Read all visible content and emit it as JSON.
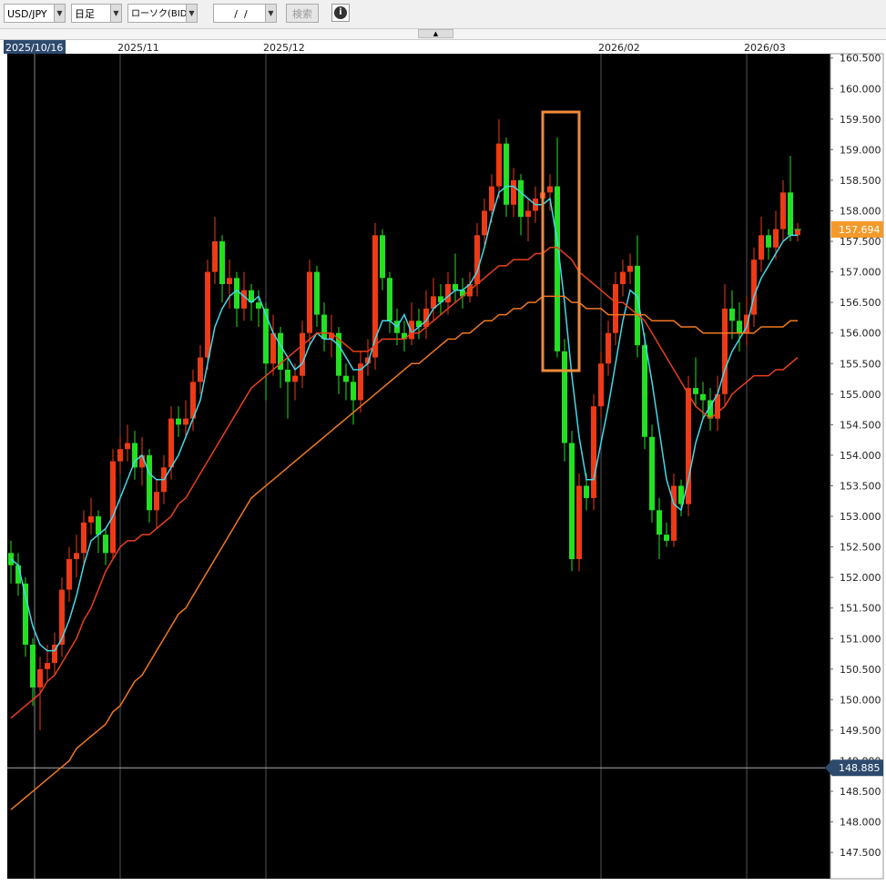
{
  "toolbar": {
    "symbol": "USD/JPY",
    "timeframe": "日足",
    "chart_type": "ローソク(BID)",
    "date": "/  /",
    "search": "検索"
  },
  "chart_data": {
    "type": "candlestick",
    "categories": [
      null,
      null,
      null,
      null,
      null,
      null,
      null,
      null,
      null,
      null,
      null,
      null,
      null,
      null,
      null,
      "2025/11",
      null,
      null,
      null,
      null,
      null,
      null,
      null,
      null,
      null,
      null,
      null,
      null,
      null,
      null,
      null,
      null,
      null,
      null,
      null,
      "2025/12",
      null,
      null,
      null,
      null,
      null,
      null,
      null,
      null,
      null,
      null,
      null,
      null,
      null,
      null,
      null,
      null,
      null,
      null,
      null,
      null,
      null,
      null,
      null,
      null,
      null,
      null,
      null,
      null,
      null,
      null,
      null,
      null,
      null,
      null,
      null,
      null,
      null,
      null,
      null,
      null,
      null,
      null,
      null,
      null,
      null,
      "2026/02",
      null,
      null,
      null,
      null,
      null,
      null,
      null,
      null,
      null,
      null,
      null,
      null,
      null,
      null,
      null,
      null,
      null,
      null,
      null,
      "2026/03",
      null,
      null,
      null,
      null,
      null,
      null,
      null
    ],
    "open": [
      152.4,
      152.2,
      151.9,
      150.9,
      150.2,
      150.5,
      150.6,
      150.9,
      151.8,
      152.3,
      152.4,
      152.9,
      153.0,
      152.7,
      152.4,
      153.9,
      154.1,
      154.2,
      153.8,
      154.0,
      153.1,
      153.4,
      153.8,
      154.6,
      154.5,
      154.6,
      155.2,
      155.6,
      157.0,
      157.5,
      156.8,
      156.9,
      156.4,
      156.7,
      156.5,
      156.4,
      155.5,
      156.0,
      155.4,
      155.2,
      155.3,
      156.0,
      157.0,
      156.3,
      155.9,
      156.0,
      155.3,
      155.2,
      154.9,
      155.5,
      155.6,
      157.6,
      156.9,
      156.2,
      156.0,
      155.9,
      156.2,
      156.1,
      156.4,
      156.6,
      156.5,
      156.8,
      156.7,
      156.6,
      156.8,
      157.6,
      158.0,
      158.4,
      159.1,
      158.1,
      158.5,
      157.9,
      158.0,
      158.2,
      158.3,
      158.4,
      155.7,
      154.2,
      152.3,
      153.5,
      153.3,
      154.8,
      155.5,
      156.0,
      156.8,
      157.0,
      157.1,
      155.8,
      154.3,
      153.1,
      152.7,
      152.6,
      153.5,
      153.2,
      155.1,
      155.0,
      154.9,
      154.6,
      155.0,
      156.4,
      156.2,
      156.0,
      156.3,
      157.2,
      157.6,
      157.4,
      157.7,
      158.3,
      157.6
    ],
    "high": [
      152.6,
      152.4,
      152.0,
      151.0,
      150.7,
      150.9,
      151.1,
      152.0,
      152.5,
      152.7,
      153.1,
      153.3,
      153.1,
      152.8,
      154.1,
      154.3,
      154.5,
      154.4,
      154.3,
      154.1,
      153.6,
      154.0,
      154.8,
      154.8,
      154.9,
      155.4,
      155.8,
      157.2,
      157.9,
      157.6,
      157.2,
      157.0,
      157.0,
      156.8,
      156.7,
      156.5,
      156.3,
      156.1,
      155.6,
      155.5,
      156.2,
      157.2,
      157.1,
      156.5,
      156.3,
      156.1,
      155.5,
      155.3,
      155.7,
      155.9,
      157.8,
      157.7,
      157.0,
      156.4,
      156.2,
      156.5,
      156.4,
      156.7,
      156.9,
      156.8,
      157.0,
      157.3,
      156.9,
      157.0,
      157.8,
      158.2,
      158.6,
      159.5,
      159.2,
      158.7,
      158.6,
      158.2,
      158.4,
      158.9,
      158.6,
      159.2,
      155.9,
      154.4,
      153.7,
      153.7,
      155.0,
      155.7,
      156.2,
      157.0,
      157.2,
      157.3,
      157.6,
      156.0,
      154.5,
      153.3,
      152.9,
      153.7,
      153.6,
      155.3,
      155.6,
      155.2,
      155.1,
      155.3,
      156.8,
      156.7,
      156.5,
      156.6,
      157.4,
      157.9,
      157.7,
      158.0,
      158.5,
      158.9,
      157.8
    ],
    "low": [
      151.9,
      151.7,
      150.7,
      149.9,
      149.5,
      150.3,
      150.4,
      150.7,
      151.6,
      152.0,
      152.2,
      152.7,
      152.4,
      152.2,
      152.3,
      153.7,
      153.9,
      153.6,
      153.5,
      152.9,
      152.8,
      153.2,
      153.6,
      154.3,
      154.3,
      154.4,
      155.0,
      155.4,
      156.8,
      156.5,
      156.4,
      156.1,
      156.2,
      156.2,
      156.1,
      154.9,
      155.3,
      155.1,
      154.6,
      154.9,
      155.1,
      155.8,
      156.1,
      155.7,
      155.6,
      155.0,
      154.9,
      154.5,
      154.7,
      155.3,
      155.4,
      156.7,
      156.0,
      155.8,
      155.7,
      155.8,
      155.9,
      155.9,
      156.2,
      156.3,
      156.3,
      156.5,
      156.4,
      156.5,
      156.6,
      157.4,
      157.8,
      158.2,
      157.9,
      157.9,
      157.6,
      157.5,
      157.8,
      158.0,
      158.0,
      155.6,
      153.9,
      152.1,
      152.1,
      153.1,
      153.1,
      154.6,
      155.3,
      155.8,
      156.6,
      156.8,
      155.6,
      154.1,
      152.9,
      152.3,
      152.5,
      152.5,
      153.0,
      153.0,
      154.8,
      154.6,
      154.4,
      154.4,
      154.8,
      155.9,
      155.7,
      155.8,
      156.1,
      157.0,
      157.2,
      157.2,
      157.5,
      157.5,
      157.5
    ],
    "close": [
      152.2,
      151.9,
      150.9,
      150.2,
      150.5,
      150.6,
      150.9,
      151.8,
      152.3,
      152.4,
      152.9,
      153.0,
      152.7,
      152.4,
      153.9,
      154.1,
      154.2,
      153.8,
      154.0,
      153.1,
      153.4,
      153.8,
      154.6,
      154.5,
      154.6,
      155.2,
      155.6,
      157.0,
      157.5,
      156.8,
      156.9,
      156.4,
      156.7,
      156.5,
      156.4,
      155.5,
      156.0,
      155.4,
      155.2,
      155.3,
      156.0,
      157.0,
      156.3,
      155.9,
      156.0,
      155.3,
      155.2,
      154.9,
      155.5,
      155.6,
      157.6,
      156.9,
      156.2,
      156.0,
      155.9,
      156.2,
      156.1,
      156.4,
      156.6,
      156.5,
      156.8,
      156.7,
      156.6,
      156.8,
      157.6,
      158.0,
      158.4,
      159.1,
      158.1,
      158.5,
      157.9,
      158.0,
      158.2,
      158.3,
      158.4,
      155.7,
      154.2,
      152.3,
      153.5,
      153.3,
      154.8,
      155.5,
      156.0,
      156.8,
      157.0,
      157.1,
      155.8,
      154.3,
      153.1,
      152.7,
      152.6,
      153.5,
      153.2,
      155.1,
      155.0,
      154.9,
      154.6,
      155.0,
      156.4,
      156.2,
      156.0,
      156.3,
      157.2,
      157.6,
      157.4,
      157.7,
      158.3,
      157.6,
      157.694
    ],
    "up_color": "#ee3a16",
    "down_color": "#22e022",
    "moving_averages": [
      {
        "color": "#44d8ea",
        "values": [
          152.3,
          152.2,
          151.7,
          151.2,
          150.9,
          150.8,
          150.8,
          151.0,
          151.3,
          151.7,
          152.2,
          152.6,
          152.7,
          152.8,
          153.0,
          153.3,
          153.6,
          153.9,
          154.0,
          153.7,
          153.6,
          153.6,
          153.8,
          154.0,
          154.3,
          154.6,
          154.9,
          155.5,
          156.1,
          156.4,
          156.6,
          156.7,
          156.6,
          156.5,
          156.6,
          156.3,
          156.0,
          155.8,
          155.6,
          155.4,
          155.5,
          155.8,
          156.0,
          155.9,
          155.9,
          155.8,
          155.6,
          155.4,
          155.4,
          155.5,
          155.9,
          156.2,
          156.2,
          156.1,
          156.3,
          156.0,
          156.1,
          156.2,
          156.4,
          156.5,
          156.6,
          156.7,
          156.7,
          156.8,
          157.0,
          157.4,
          157.9,
          158.3,
          158.4,
          158.4,
          158.3,
          158.2,
          158.1,
          158.1,
          158.2,
          157.5,
          156.5,
          155.3,
          154.3,
          153.6,
          153.6,
          154.2,
          154.8,
          155.5,
          156.2,
          156.7,
          156.6,
          155.9,
          155.2,
          154.4,
          153.6,
          153.2,
          153.1,
          153.6,
          154.2,
          154.6,
          154.8,
          155.0,
          155.4,
          155.7,
          155.9,
          156.1,
          156.6,
          156.9,
          157.1,
          157.3,
          157.5,
          157.6,
          157.6
        ]
      },
      {
        "color": "#e8401c",
        "values": [
          149.7,
          149.8,
          149.9,
          150.0,
          150.1,
          150.3,
          150.4,
          150.6,
          150.8,
          151.0,
          151.3,
          151.5,
          151.8,
          152.1,
          152.3,
          152.5,
          152.6,
          152.6,
          152.7,
          152.7,
          152.8,
          152.9,
          153.0,
          153.2,
          153.3,
          153.5,
          153.7,
          153.9,
          154.1,
          154.3,
          154.5,
          154.7,
          154.9,
          155.1,
          155.2,
          155.3,
          155.4,
          155.5,
          155.6,
          155.7,
          155.8,
          155.9,
          156.0,
          156.0,
          156.0,
          155.9,
          155.8,
          155.7,
          155.7,
          155.7,
          155.8,
          155.9,
          155.9,
          155.9,
          155.9,
          156.0,
          156.0,
          156.1,
          156.2,
          156.3,
          156.4,
          156.5,
          156.6,
          156.7,
          156.8,
          156.9,
          157.0,
          157.1,
          157.1,
          157.2,
          157.2,
          157.2,
          157.3,
          157.3,
          157.4,
          157.4,
          157.3,
          157.2,
          157.0,
          156.9,
          156.8,
          156.7,
          156.6,
          156.5,
          156.5,
          156.4,
          156.3,
          156.2,
          156.0,
          155.8,
          155.6,
          155.4,
          155.2,
          155.0,
          154.8,
          154.7,
          154.6,
          154.7,
          154.8,
          155.0,
          155.1,
          155.2,
          155.3,
          155.3,
          155.3,
          155.4,
          155.4,
          155.5,
          155.6
        ]
      },
      {
        "color": "#f07820",
        "values": [
          148.2,
          148.3,
          148.4,
          148.5,
          148.6,
          148.7,
          148.8,
          148.9,
          149.0,
          149.2,
          149.3,
          149.4,
          149.5,
          149.6,
          149.8,
          149.9,
          150.1,
          150.3,
          150.4,
          150.6,
          150.8,
          151.0,
          151.2,
          151.4,
          151.5,
          151.7,
          151.9,
          152.1,
          152.3,
          152.5,
          152.7,
          152.9,
          153.1,
          153.3,
          153.4,
          153.5,
          153.6,
          153.7,
          153.8,
          153.9,
          154.0,
          154.1,
          154.2,
          154.3,
          154.4,
          154.5,
          154.6,
          154.7,
          154.8,
          154.9,
          155.0,
          155.1,
          155.2,
          155.3,
          155.4,
          155.5,
          155.5,
          155.6,
          155.7,
          155.8,
          155.9,
          155.9,
          156.0,
          156.0,
          156.1,
          156.2,
          156.2,
          156.3,
          156.3,
          156.4,
          156.4,
          156.5,
          156.5,
          156.6,
          156.6,
          156.6,
          156.6,
          156.5,
          156.5,
          156.4,
          156.4,
          156.4,
          156.3,
          156.3,
          156.3,
          156.3,
          156.3,
          156.3,
          156.2,
          156.2,
          156.2,
          156.2,
          156.1,
          156.1,
          156.1,
          156.0,
          156.0,
          156.0,
          156.0,
          156.0,
          156.0,
          156.0,
          156.0,
          156.1,
          156.1,
          156.1,
          156.1,
          156.2,
          156.2
        ]
      }
    ],
    "ylim": [
      147.07,
      160.57
    ],
    "yticks": [
      {
        "value": 147.5,
        "label": "147.500"
      },
      {
        "value": 148,
        "label": "148.000"
      },
      {
        "value": 148.5,
        "label": "148.500"
      },
      {
        "value": 149,
        "label": "149.000"
      },
      {
        "value": 149.5,
        "label": "149.500"
      },
      {
        "value": 150,
        "label": "150.000"
      },
      {
        "value": 150.5,
        "label": "150.500"
      },
      {
        "value": 151,
        "label": "151.000"
      },
      {
        "value": 151.5,
        "label": "151.500"
      },
      {
        "value": 152,
        "label": "152.000"
      },
      {
        "value": 152.5,
        "label": "152.500"
      },
      {
        "value": 153,
        "label": "153.000"
      },
      {
        "value": 153.5,
        "label": "153.500"
      },
      {
        "value": 154,
        "label": "154.000"
      },
      {
        "value": 154.5,
        "label": "154.500"
      },
      {
        "value": 155,
        "label": "155.000"
      },
      {
        "value": 155.5,
        "label": "155.500"
      },
      {
        "value": 156,
        "label": "156.000"
      },
      {
        "value": 156.5,
        "label": "156.500"
      },
      {
        "value": 157,
        "label": "157.000"
      },
      {
        "value": 157.5,
        "label": "157.500"
      },
      {
        "value": 158,
        "label": "158.000"
      },
      {
        "value": 158.5,
        "label": "158.500"
      },
      {
        "value": 159,
        "label": "159.000"
      },
      {
        "value": 159.5,
        "label": "159.500"
      },
      {
        "value": 160,
        "label": "160.000"
      },
      {
        "value": 160.5,
        "label": "160.500"
      }
    ],
    "x_grid": true,
    "crosshair": {
      "date": "2025/10/16",
      "price": 148.885
    }
  }
}
